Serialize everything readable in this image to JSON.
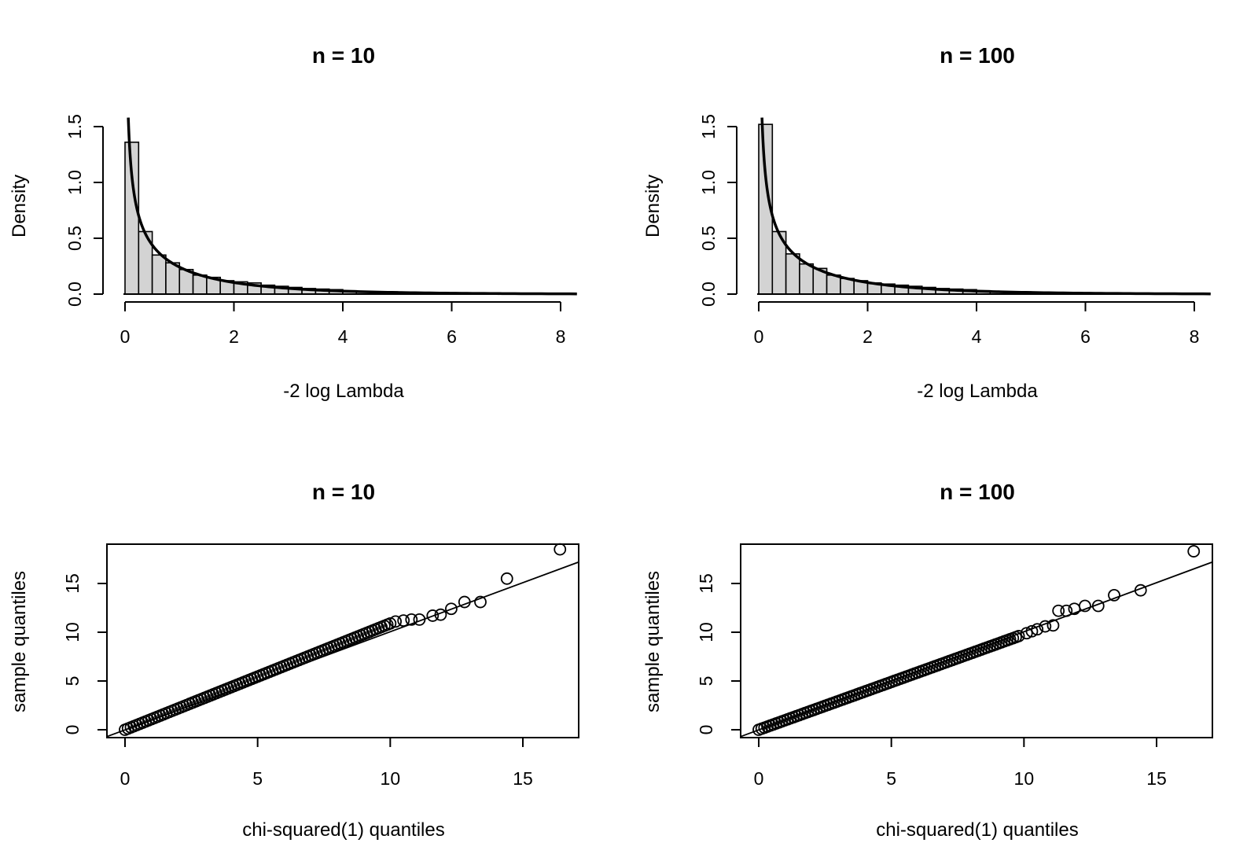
{
  "chart_data": [
    {
      "type": "bar",
      "subtype": "histogram",
      "title": "n = 10",
      "xlabel": "-2 log Lambda",
      "ylabel": "Density",
      "xlim": [
        0,
        8
      ],
      "ylim": [
        0,
        1.5
      ],
      "xticks": [
        "0",
        "2",
        "4",
        "6",
        "8"
      ],
      "yticks": [
        "0.0",
        "0.5",
        "1.0",
        "1.5"
      ],
      "bin_width": 0.25,
      "values": [
        1.36,
        0.56,
        0.35,
        0.28,
        0.22,
        0.17,
        0.15,
        0.12,
        0.11,
        0.1,
        0.08,
        0.07,
        0.06,
        0.05,
        0.045,
        0.04,
        0.03,
        0.025,
        0.02,
        0.02,
        0.015,
        0.012,
        0.01,
        0.008,
        0.007,
        0.006,
        0.005,
        0.004,
        0.003,
        0.003,
        0.002,
        0.002
      ],
      "overlay": "chi-squared(1) density",
      "grid": false
    },
    {
      "type": "bar",
      "subtype": "histogram",
      "title": "n = 100",
      "xlabel": "-2 log Lambda",
      "ylabel": "Density",
      "xlim": [
        0,
        8
      ],
      "ylim": [
        0,
        1.5
      ],
      "xticks": [
        "0",
        "2",
        "4",
        "6",
        "8"
      ],
      "yticks": [
        "0.0",
        "0.5",
        "1.0",
        "1.5"
      ],
      "bin_width": 0.25,
      "values": [
        1.52,
        0.56,
        0.36,
        0.27,
        0.23,
        0.17,
        0.14,
        0.12,
        0.1,
        0.09,
        0.08,
        0.07,
        0.06,
        0.05,
        0.045,
        0.04,
        0.03,
        0.025,
        0.02,
        0.02,
        0.015,
        0.012,
        0.01,
        0.008,
        0.007,
        0.006,
        0.005,
        0.004,
        0.003,
        0.003,
        0.002,
        0.002
      ],
      "overlay": "chi-squared(1) density",
      "grid": false
    },
    {
      "type": "scatter",
      "subtype": "qq-plot",
      "title": "n = 10",
      "xlabel": "chi-squared(1) quantiles",
      "ylabel": "sample quantiles",
      "xlim": [
        0,
        17
      ],
      "ylim": [
        0,
        18
      ],
      "xticks": [
        "0",
        "5",
        "10",
        "15"
      ],
      "yticks": [
        "0",
        "5",
        "10",
        "15"
      ],
      "reference_line": {
        "intercept": 0,
        "slope": 1
      },
      "band": {
        "x_end": 10.0,
        "y_end": 10.9
      },
      "points": [
        {
          "x": 10.2,
          "y": 11.1
        },
        {
          "x": 10.5,
          "y": 11.2
        },
        {
          "x": 10.8,
          "y": 11.3
        },
        {
          "x": 11.1,
          "y": 11.3
        },
        {
          "x": 11.6,
          "y": 11.7
        },
        {
          "x": 11.9,
          "y": 11.8
        },
        {
          "x": 12.3,
          "y": 12.4
        },
        {
          "x": 12.8,
          "y": 13.1
        },
        {
          "x": 13.4,
          "y": 13.1
        },
        {
          "x": 14.4,
          "y": 15.5
        },
        {
          "x": 16.4,
          "y": 18.5
        }
      ],
      "grid": false
    },
    {
      "type": "scatter",
      "subtype": "qq-plot",
      "title": "n = 100",
      "xlabel": "chi-squared(1) quantiles",
      "ylabel": "sample quantiles",
      "xlim": [
        0,
        17
      ],
      "ylim": [
        0,
        18
      ],
      "xticks": [
        "0",
        "5",
        "10",
        "15"
      ],
      "yticks": [
        "0",
        "5",
        "10",
        "15"
      ],
      "reference_line": {
        "intercept": 0,
        "slope": 1
      },
      "band": {
        "x_end": 9.8,
        "y_end": 9.6
      },
      "points": [
        {
          "x": 10.1,
          "y": 9.9
        },
        {
          "x": 10.3,
          "y": 10.1
        },
        {
          "x": 10.5,
          "y": 10.3
        },
        {
          "x": 10.8,
          "y": 10.6
        },
        {
          "x": 11.1,
          "y": 10.7
        },
        {
          "x": 11.3,
          "y": 12.2
        },
        {
          "x": 11.6,
          "y": 12.2
        },
        {
          "x": 11.9,
          "y": 12.4
        },
        {
          "x": 12.3,
          "y": 12.7
        },
        {
          "x": 12.8,
          "y": 12.7
        },
        {
          "x": 13.4,
          "y": 13.8
        },
        {
          "x": 14.4,
          "y": 14.3
        },
        {
          "x": 16.4,
          "y": 18.3
        }
      ],
      "grid": false
    }
  ]
}
